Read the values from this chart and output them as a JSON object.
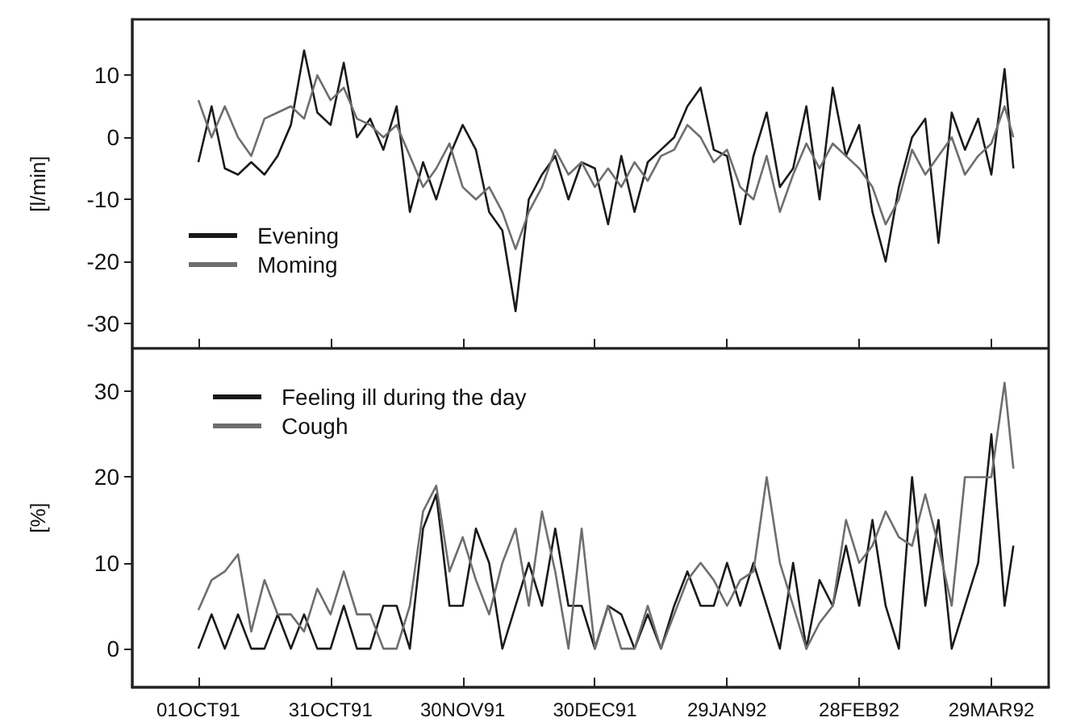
{
  "chart_data": [
    {
      "type": "line",
      "ylabel": "[l/min]",
      "legend": "bottom left",
      "tick_labels": "y",
      "x": [
        "1991-10-01",
        "1991-10-04",
        "1991-10-07",
        "1991-10-10",
        "1991-10-13",
        "1991-10-16",
        "1991-10-19",
        "1991-10-22",
        "1991-10-25",
        "1991-10-28",
        "1991-10-31",
        "1991-11-03",
        "1991-11-06",
        "1991-11-09",
        "1991-11-12",
        "1991-11-15",
        "1991-11-18",
        "1991-11-21",
        "1991-11-24",
        "1991-11-27",
        "1991-11-30",
        "1991-12-03",
        "1991-12-06",
        "1991-12-09",
        "1991-12-12",
        "1991-12-15",
        "1991-12-18",
        "1991-12-21",
        "1991-12-24",
        "1991-12-27",
        "1991-12-30",
        "1992-01-02",
        "1992-01-05",
        "1992-01-08",
        "1992-01-11",
        "1992-01-14",
        "1992-01-17",
        "1992-01-20",
        "1992-01-23",
        "1992-01-26",
        "1992-01-29",
        "1992-02-01",
        "1992-02-04",
        "1992-02-07",
        "1992-02-10",
        "1992-02-13",
        "1992-02-16",
        "1992-02-19",
        "1992-02-22",
        "1992-02-25",
        "1992-02-28",
        "1992-03-02",
        "1992-03-05",
        "1992-03-08",
        "1992-03-11",
        "1992-03-14",
        "1992-03-17",
        "1992-03-20",
        "1992-03-23",
        "1992-03-26",
        "1992-03-29",
        "1992-04-01",
        "1992-04-03"
      ],
      "xlim": [
        "1991-09-16",
        "1992-04-11"
      ],
      "xticks": [
        {
          "value": "1991-10-01",
          "label": null
        },
        {
          "value": "1991-10-31",
          "label": null
        },
        {
          "value": "1991-11-30",
          "label": null
        },
        {
          "value": "1991-12-30",
          "label": null
        },
        {
          "value": "1992-01-29",
          "label": null
        },
        {
          "value": "1992-02-28",
          "label": null
        },
        {
          "value": "1992-03-29",
          "label": null
        }
      ],
      "ylim": [
        -34,
        19
      ],
      "yticks": [
        -30,
        -20,
        -10,
        0,
        10
      ],
      "series": [
        {
          "name": "Evening",
          "color": "#1a1a1a",
          "values": [
            -4,
            5,
            -5,
            -6,
            -4,
            -6,
            -3,
            2,
            14,
            4,
            2,
            12,
            0,
            3,
            -2,
            5,
            -12,
            -4,
            -10,
            -3,
            2,
            -2,
            -12,
            -15,
            -28,
            -10,
            -6,
            -3,
            -10,
            -4,
            -5,
            -14,
            -3,
            -12,
            -4,
            -2,
            0,
            5,
            8,
            -2,
            -3,
            -14,
            -3,
            4,
            -8,
            -5,
            5,
            -10,
            8,
            -3,
            2,
            -12,
            -20,
            -8,
            0,
            3,
            -17,
            4,
            -2,
            3,
            -6,
            11,
            -5
          ]
        },
        {
          "name": "Moming",
          "color": "#6e6e6e",
          "values": [
            6,
            0,
            5,
            0,
            -3,
            3,
            4,
            5,
            3,
            10,
            6,
            8,
            3,
            2,
            0,
            2,
            -3,
            -8,
            -5,
            -1,
            -8,
            -10,
            -8,
            -12,
            -18,
            -12,
            -8,
            -2,
            -6,
            -4,
            -8,
            -5,
            -8,
            -4,
            -7,
            -3,
            -2,
            2,
            0,
            -4,
            -2,
            -8,
            -10,
            -3,
            -12,
            -6,
            -1,
            -5,
            -1,
            -3,
            -5,
            -8,
            -14,
            -10,
            -2,
            -6,
            -3,
            0,
            -6,
            -3,
            -1,
            5,
            0
          ]
        }
      ]
    },
    {
      "type": "line",
      "ylabel": "[%]",
      "legend": "top left",
      "x": [
        "1991-10-01",
        "1991-10-04",
        "1991-10-07",
        "1991-10-10",
        "1991-10-13",
        "1991-10-16",
        "1991-10-19",
        "1991-10-22",
        "1991-10-25",
        "1991-10-28",
        "1991-10-31",
        "1991-11-03",
        "1991-11-06",
        "1991-11-09",
        "1991-11-12",
        "1991-11-15",
        "1991-11-18",
        "1991-11-21",
        "1991-11-24",
        "1991-11-27",
        "1991-11-30",
        "1991-12-03",
        "1991-12-06",
        "1991-12-09",
        "1991-12-12",
        "1991-12-15",
        "1991-12-18",
        "1991-12-21",
        "1991-12-24",
        "1991-12-27",
        "1991-12-30",
        "1992-01-02",
        "1992-01-05",
        "1992-01-08",
        "1992-01-11",
        "1992-01-14",
        "1992-01-17",
        "1992-01-20",
        "1992-01-23",
        "1992-01-26",
        "1992-01-29",
        "1992-02-01",
        "1992-02-04",
        "1992-02-07",
        "1992-02-10",
        "1992-02-13",
        "1992-02-16",
        "1992-02-19",
        "1992-02-22",
        "1992-02-25",
        "1992-02-28",
        "1992-03-02",
        "1992-03-05",
        "1992-03-08",
        "1992-03-11",
        "1992-03-14",
        "1992-03-17",
        "1992-03-20",
        "1992-03-23",
        "1992-03-26",
        "1992-03-29",
        "1992-04-01",
        "1992-04-03"
      ],
      "xlim": [
        "1991-09-16",
        "1992-04-11"
      ],
      "xticks": [
        {
          "value": "1991-10-01",
          "label": "01OCT91"
        },
        {
          "value": "1991-10-31",
          "label": "31OCT91"
        },
        {
          "value": "1991-11-30",
          "label": "30NOV91"
        },
        {
          "value": "1991-12-30",
          "label": "30DEC91"
        },
        {
          "value": "1992-01-29",
          "label": "29JAN92"
        },
        {
          "value": "1992-02-28",
          "label": "28FEB92"
        },
        {
          "value": "1992-03-29",
          "label": "29MAR92"
        }
      ],
      "ylim": [
        -4.5,
        35
      ],
      "yticks": [
        0,
        10,
        20,
        30
      ],
      "series": [
        {
          "name": "Feeling ill during the day",
          "color": "#1a1a1a",
          "values": [
            0,
            4,
            0,
            4,
            0,
            0,
            4,
            0,
            4,
            0,
            0,
            5,
            0,
            0,
            5,
            5,
            0,
            14,
            18,
            5,
            5,
            14,
            10,
            0,
            5,
            10,
            5,
            14,
            5,
            5,
            0,
            5,
            4,
            0,
            4,
            0,
            5,
            9,
            5,
            5,
            10,
            5,
            10,
            5,
            0,
            10,
            0,
            8,
            5,
            12,
            5,
            15,
            5,
            0,
            20,
            5,
            15,
            0,
            5,
            10,
            25,
            5,
            12
          ]
        },
        {
          "name": "Cough",
          "color": "#6e6e6e",
          "values": [
            4.5,
            8,
            9,
            11,
            2,
            8,
            4,
            4,
            2,
            7,
            4,
            9,
            4,
            4,
            0,
            0,
            5,
            16,
            19,
            9,
            13,
            8,
            4,
            10,
            14,
            5,
            16,
            9,
            0,
            14,
            0,
            5,
            0,
            0,
            5,
            0,
            4,
            8,
            10,
            8,
            5,
            8,
            9,
            20,
            10,
            5,
            0,
            3,
            5,
            15,
            10,
            12,
            16,
            13,
            12,
            18,
            12,
            5,
            20,
            20,
            20,
            31,
            21
          ]
        }
      ]
    }
  ]
}
